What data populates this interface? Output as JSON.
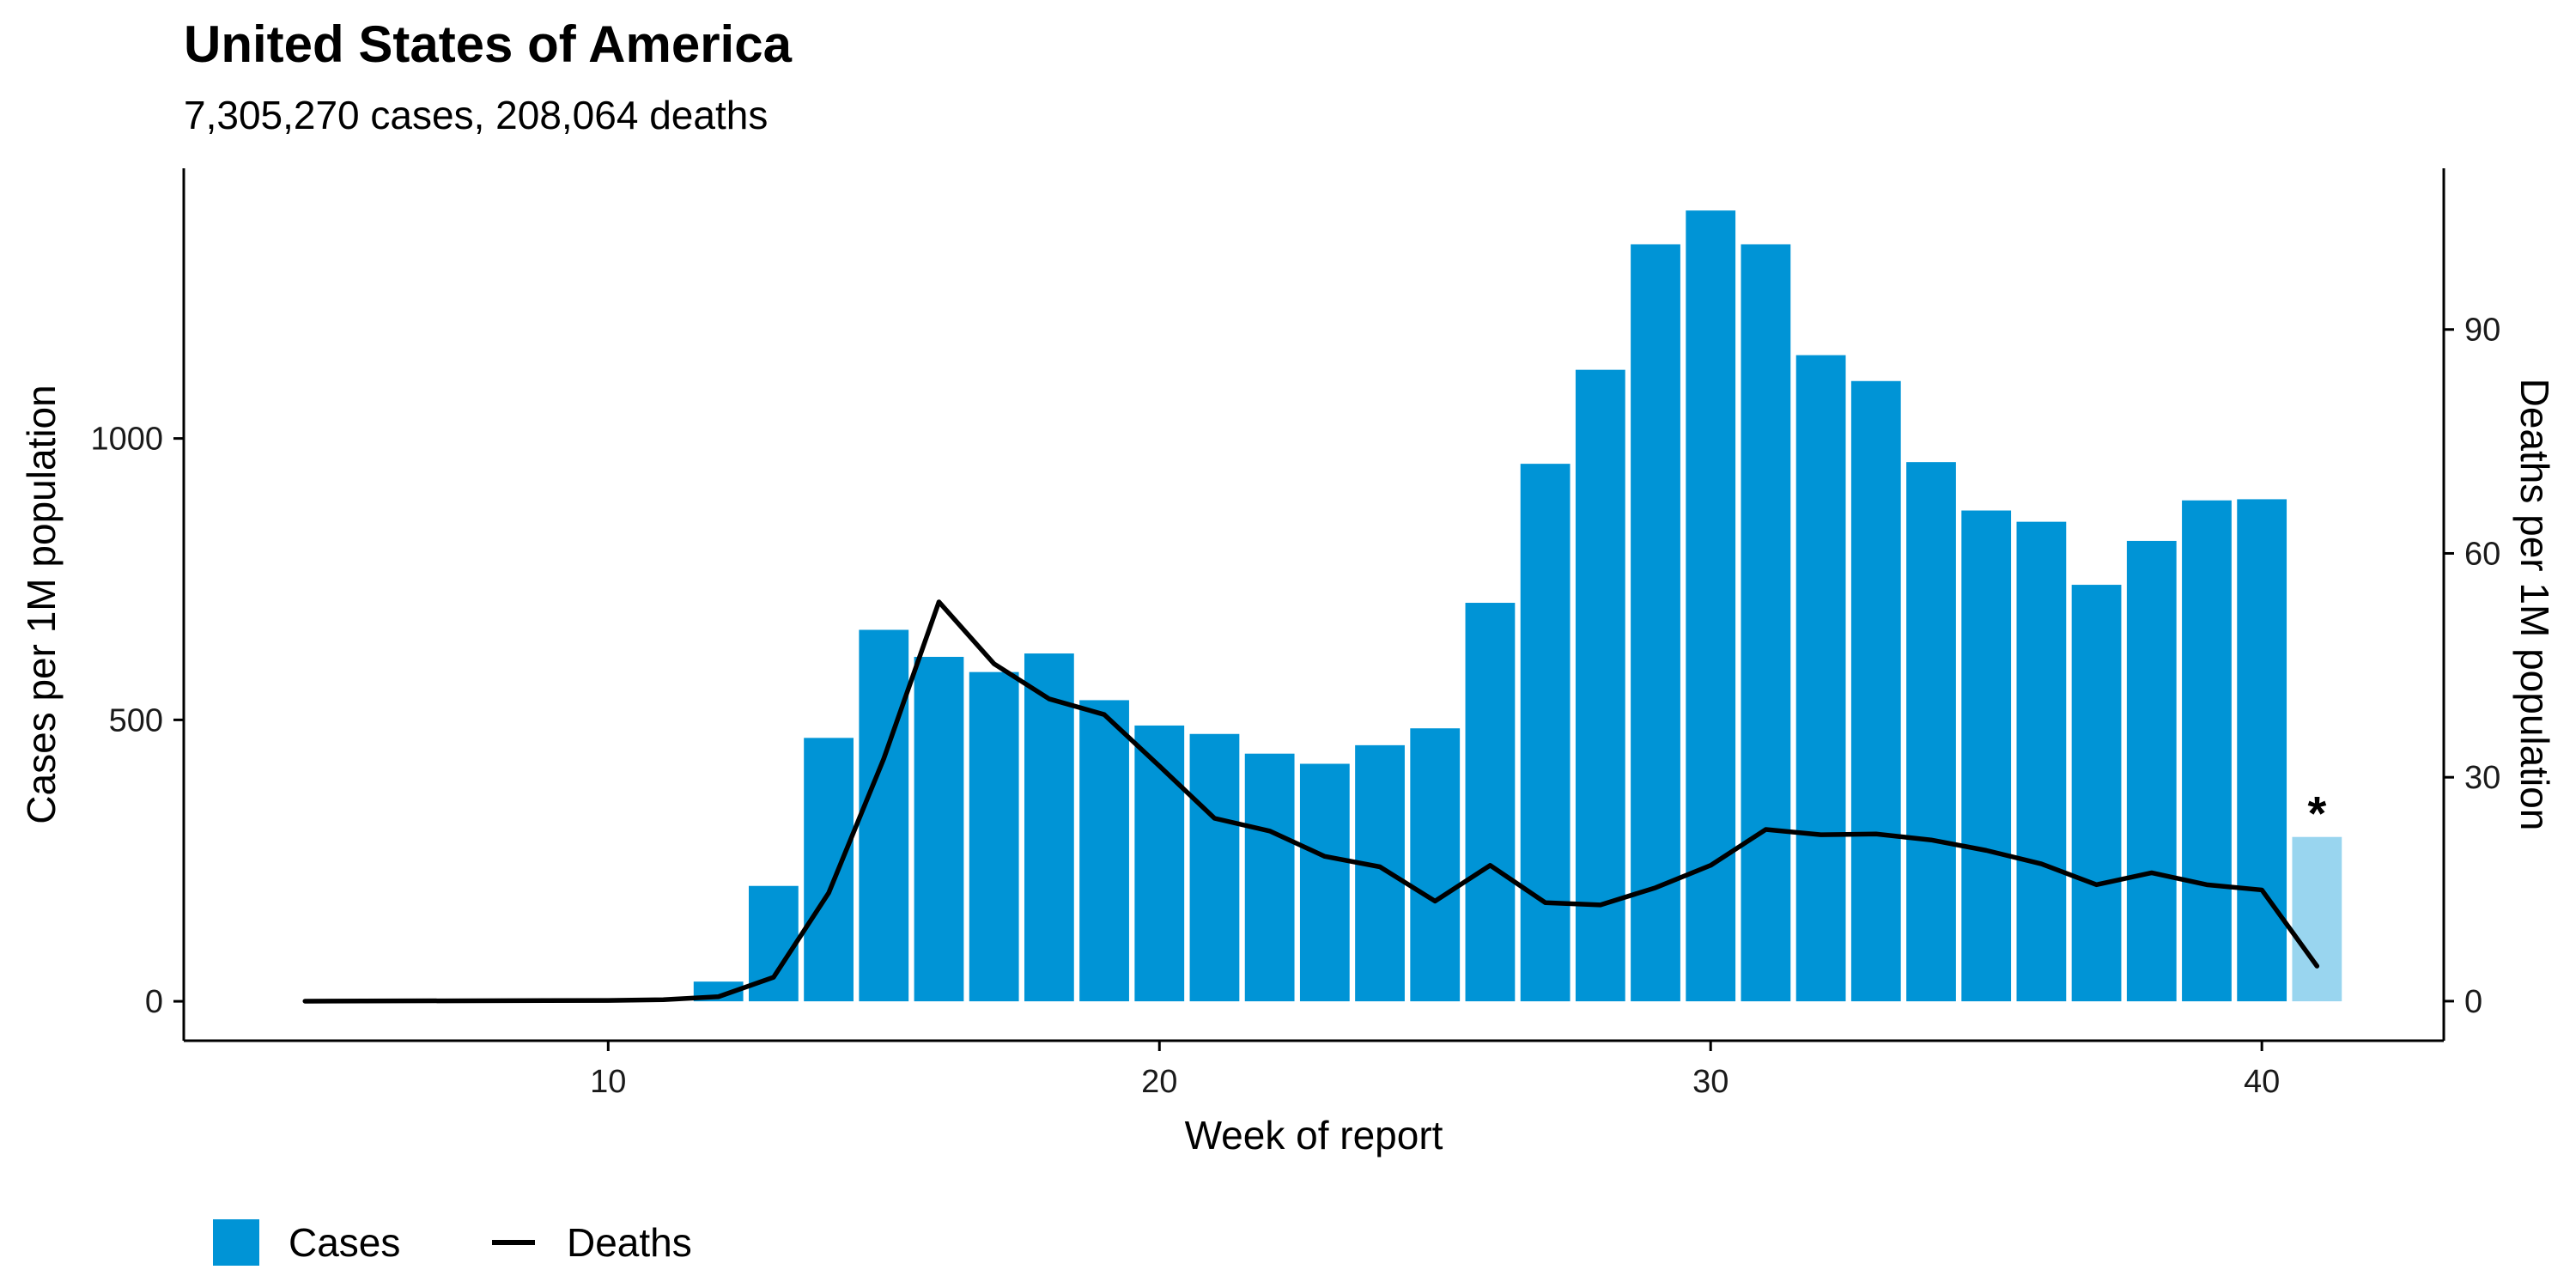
{
  "chart_data": {
    "type": "bar",
    "title": "United States of America",
    "subtitle": "7,305,270 cases, 208,064 deaths",
    "xlabel": "Week of report",
    "ylabel": "Cases per 1M population",
    "y2label": "Deaths per 1M population",
    "xlim": [
      2.3,
      43.3
    ],
    "ylim": [
      -70,
      1480
    ],
    "y2lim": [
      -5.3,
      111.6
    ],
    "x_ticks": [
      10,
      20,
      30,
      40
    ],
    "y_ticks": [
      0,
      500,
      1000
    ],
    "y2_ticks": [
      0,
      30,
      60,
      90
    ],
    "legend_position": "bottom-left",
    "legend": [
      "Cases",
      "Deaths"
    ],
    "colors": {
      "cases": "#0094D6",
      "cases_incomplete": "#99D5EF",
      "deaths": "#000000"
    },
    "series": [
      {
        "name": "Cases",
        "kind": "bar",
        "x": [
          12,
          13,
          14,
          15,
          16,
          17,
          18,
          19,
          20,
          21,
          22,
          23,
          24,
          25,
          26,
          27,
          28,
          29,
          30,
          31,
          32,
          33,
          34,
          35,
          36,
          37,
          38,
          39,
          40,
          41
        ],
        "values": [
          35,
          205,
          468,
          660,
          612,
          585,
          618,
          535,
          490,
          475,
          440,
          422,
          455,
          485,
          708,
          955,
          1122,
          1345,
          1405,
          1345,
          1148,
          1102,
          958,
          872,
          852,
          740,
          818,
          890,
          892,
          292
        ],
        "incomplete_x": [
          41
        ],
        "incomplete_marker": "*"
      },
      {
        "name": "Deaths",
        "kind": "line",
        "axis": "right",
        "x": [
          4.5,
          10,
          11,
          12,
          13,
          14,
          15,
          16,
          17,
          18,
          19,
          20,
          21,
          22,
          23,
          24,
          25,
          26,
          27,
          28,
          29,
          30,
          31,
          32,
          33,
          34,
          35,
          36,
          37,
          38,
          39,
          40,
          41
        ],
        "values": [
          0,
          0.1,
          0.2,
          0.6,
          3.2,
          14.5,
          32.5,
          53.5,
          45.2,
          40.5,
          38.4,
          31.5,
          24.5,
          22.8,
          19.4,
          18.0,
          13.4,
          18.2,
          13.2,
          12.9,
          15.2,
          18.2,
          23.0,
          22.3,
          22.4,
          21.6,
          20.2,
          18.4,
          15.6,
          17.2,
          15.6,
          14.9,
          4.7
        ]
      }
    ]
  }
}
